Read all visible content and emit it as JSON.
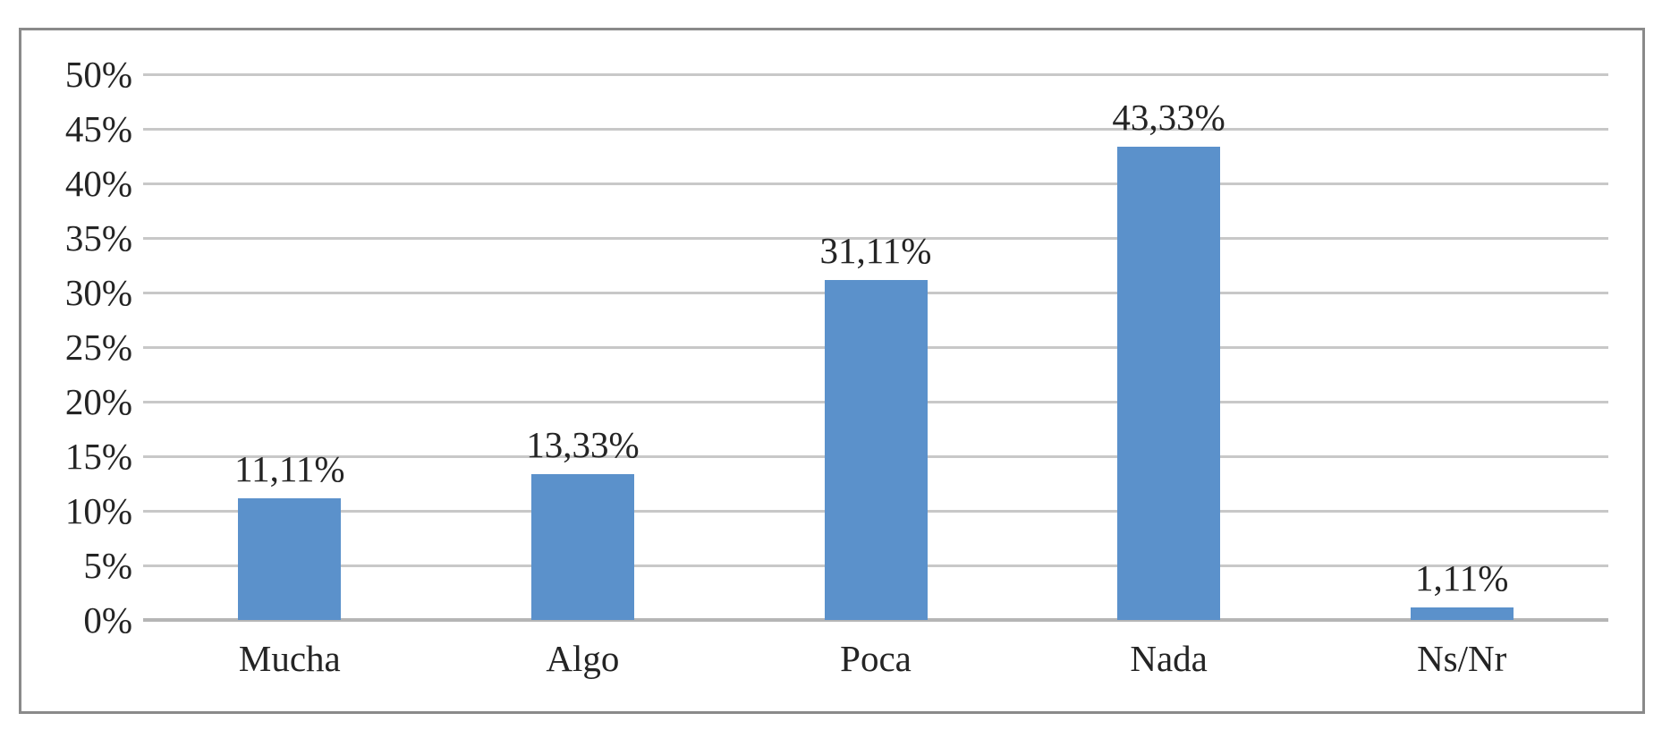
{
  "chart_data": {
    "type": "bar",
    "categories": [
      "Mucha",
      "Algo",
      "Poca",
      "Nada",
      "Ns/Nr"
    ],
    "values": [
      11.11,
      13.33,
      31.11,
      43.33,
      1.11
    ],
    "data_labels": [
      "11,11%",
      "13,33%",
      "31,11%",
      "43,33%",
      "1,11%"
    ],
    "title": "",
    "xlabel": "",
    "ylabel": "",
    "ylim": [
      0,
      50
    ],
    "ytick_step": 5,
    "ytick_labels": [
      "0%",
      "5%",
      "10%",
      "15%",
      "20%",
      "25%",
      "30%",
      "35%",
      "40%",
      "45%",
      "50%"
    ],
    "grid": true,
    "legend_position": "none",
    "colors": {
      "bar_fill": "#5B91CB",
      "gridline": "#C8C8C8",
      "zero_axis_line": "#B5B5B5",
      "frame_border": "#8A8A8A",
      "text": "#242424",
      "background": "#FFFFFF"
    }
  }
}
